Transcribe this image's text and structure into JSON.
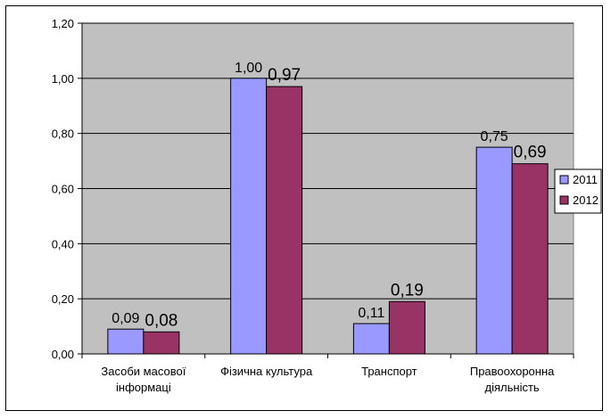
{
  "chart_data": {
    "type": "bar",
    "title": "",
    "xlabel": "",
    "ylabel": "",
    "categories": [
      [
        "Засоби масової",
        "інформаці"
      ],
      [
        "Фізична культура"
      ],
      [
        "Транспорт"
      ],
      [
        "Правоохоронна",
        "діяльність"
      ]
    ],
    "series": [
      {
        "name": "2011",
        "values": [
          0.09,
          1.0,
          0.11,
          0.75
        ],
        "labels": [
          "0,09",
          "1,00",
          "0,11",
          "0,75"
        ],
        "color": "#9999ff"
      },
      {
        "name": "2012",
        "values": [
          0.08,
          0.97,
          0.19,
          0.69
        ],
        "labels": [
          "0,08",
          "0,97",
          "0,19",
          "0,69"
        ],
        "color": "#993366"
      }
    ],
    "ylim": [
      0,
      1.2
    ],
    "yticks": [
      0,
      0.2,
      0.4,
      0.6,
      0.8,
      1.0,
      1.2
    ],
    "ytick_labels": [
      "0,00",
      "0,20",
      "0,40",
      "0,60",
      "0,80",
      "1,00",
      "1,20"
    ],
    "plot_background": "#c0c0c0",
    "grid": true,
    "legend_position": "right"
  }
}
